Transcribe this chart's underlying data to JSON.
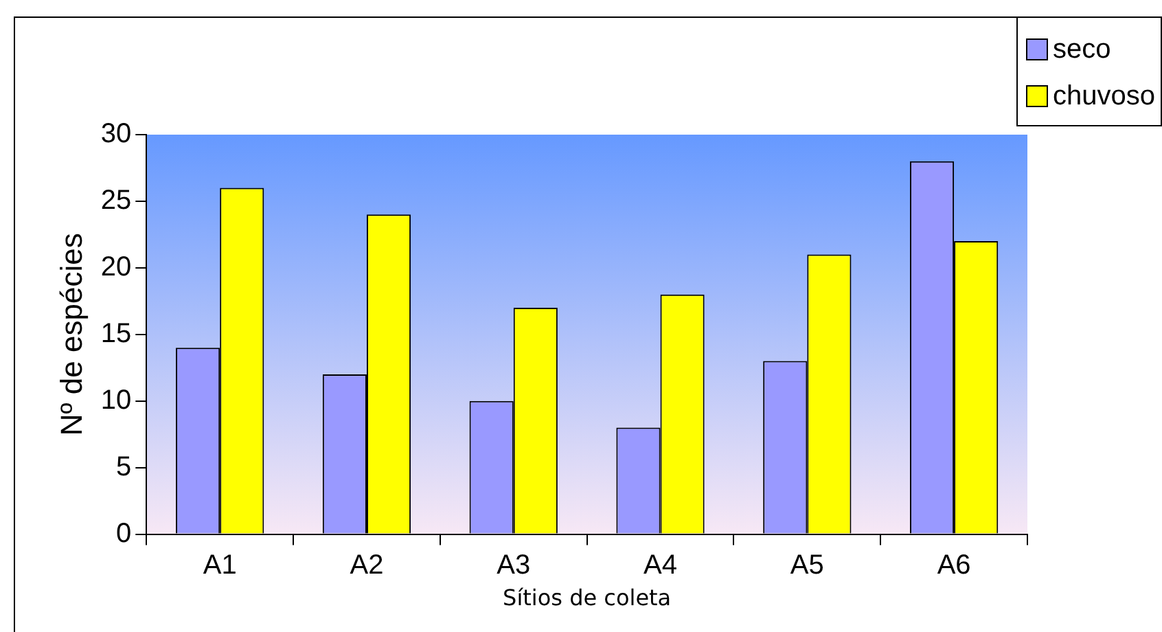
{
  "chart_data": {
    "type": "bar",
    "xlabel": "Sítios de coleta",
    "ylabel": "Nº de espécies",
    "categories": [
      "A1",
      "A2",
      "A3",
      "A4",
      "A5",
      "A6"
    ],
    "series": [
      {
        "name": "seco",
        "color": "#9999ff",
        "values": [
          14,
          12,
          10,
          8,
          13,
          28
        ]
      },
      {
        "name": "chuvoso",
        "color": "#ffff00",
        "values": [
          26,
          24,
          17,
          18,
          21,
          22
        ]
      }
    ],
    "ylim": [
      0,
      30
    ],
    "yticks": [
      0,
      5,
      10,
      15,
      20,
      25,
      30
    ],
    "grid": false,
    "legend": "top right"
  }
}
